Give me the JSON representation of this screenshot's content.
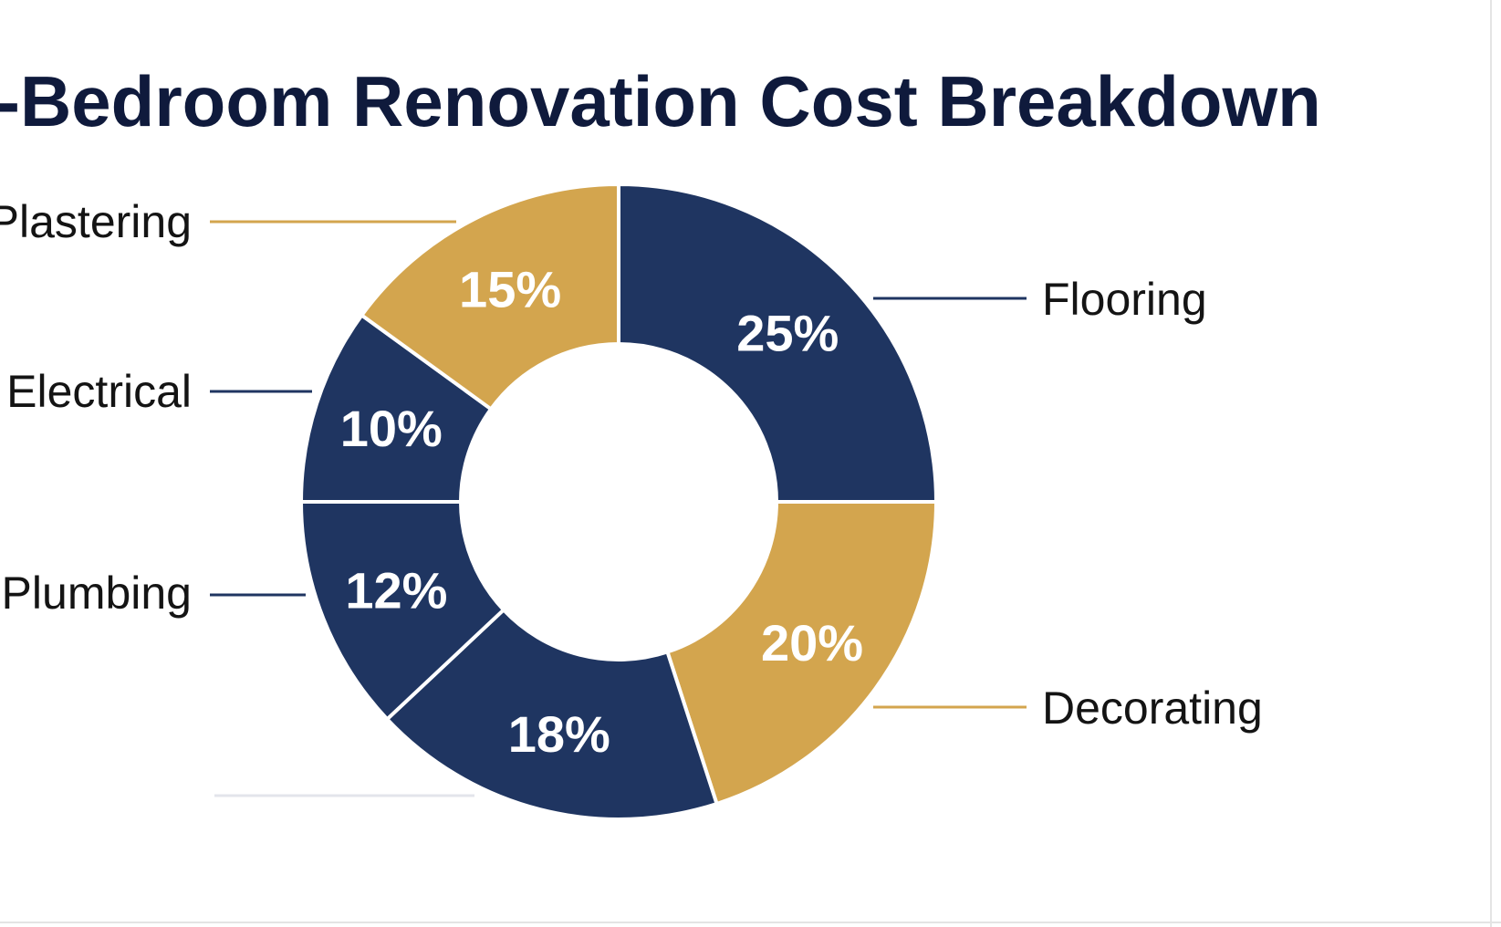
{
  "chart_data": {
    "type": "pie",
    "variant": "donut",
    "title": "-Bedroom Renovation Cost Breakdown",
    "legend": "none",
    "label_style": "callout",
    "unit": "%",
    "colors": {
      "navy": "#1f3561",
      "gold": "#d3a54e",
      "title": "#0f1a3c",
      "separator": "#ffffff"
    },
    "slices": [
      {
        "label": "Flooring",
        "value": 25,
        "value_label": "25%",
        "color": "#1f3561"
      },
      {
        "label": "Decorating",
        "value": 20,
        "value_label": "20%",
        "color": "#d3a54e"
      },
      {
        "label": "",
        "value": 18,
        "value_label": "18%",
        "color": "#1f3561"
      },
      {
        "label": "Plumbing",
        "value": 12,
        "value_label": "12%",
        "color": "#1f3561"
      },
      {
        "label": "Electrical",
        "value": 10,
        "value_label": "10%",
        "color": "#1f3561"
      },
      {
        "label": "Plastering",
        "value": 15,
        "value_label": "15%",
        "color": "#d3a54e"
      }
    ]
  }
}
